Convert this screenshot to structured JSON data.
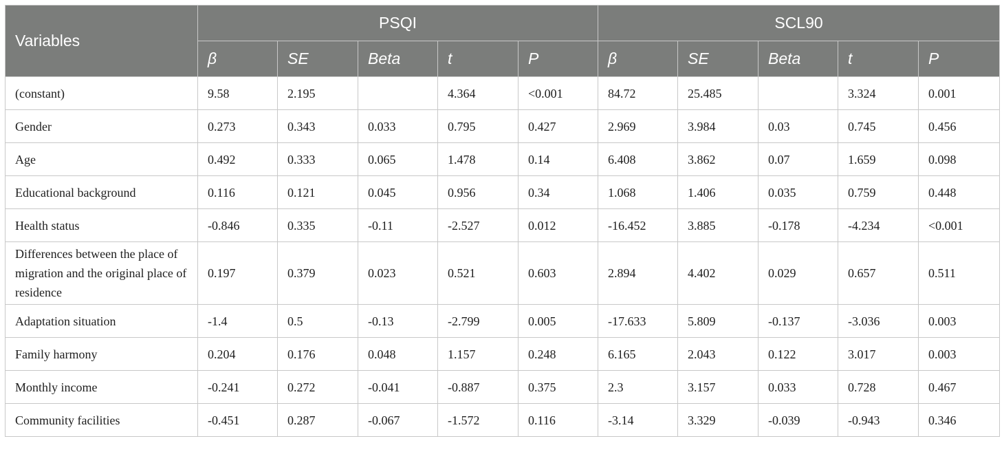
{
  "table": {
    "variables_header": "Variables",
    "groups": [
      "PSQI",
      "SCL90"
    ],
    "subheaders": [
      "β",
      "SE",
      "Beta",
      "t",
      "P",
      "β",
      "SE",
      "Beta",
      "t",
      "P"
    ],
    "rows": [
      {
        "label": "(constant)",
        "values": [
          "9.58",
          "2.195",
          "",
          "4.364",
          "<0.001",
          "84.72",
          "25.485",
          "",
          "3.324",
          "0.001"
        ]
      },
      {
        "label": "Gender",
        "values": [
          "0.273",
          "0.343",
          "0.033",
          "0.795",
          "0.427",
          "2.969",
          "3.984",
          "0.03",
          "0.745",
          "0.456"
        ]
      },
      {
        "label": "Age",
        "values": [
          "0.492",
          "0.333",
          "0.065",
          "1.478",
          "0.14",
          "6.408",
          "3.862",
          "0.07",
          "1.659",
          "0.098"
        ]
      },
      {
        "label": "Educational background",
        "values": [
          "0.116",
          "0.121",
          "0.045",
          "0.956",
          "0.34",
          "1.068",
          "1.406",
          "0.035",
          "0.759",
          "0.448"
        ]
      },
      {
        "label": "Health status",
        "values": [
          "-0.846",
          "0.335",
          "-0.11",
          "-2.527",
          "0.012",
          "-16.452",
          "3.885",
          "-0.178",
          "-4.234",
          "<0.001"
        ]
      },
      {
        "label": "Differences between the place of migration and the original place of residence",
        "values": [
          "0.197",
          "0.379",
          "0.023",
          "0.521",
          "0.603",
          "2.894",
          "4.402",
          "0.029",
          "0.657",
          "0.511"
        ]
      },
      {
        "label": "Adaptation situation",
        "values": [
          "-1.4",
          "0.5",
          "-0.13",
          "-2.799",
          "0.005",
          "-17.633",
          "5.809",
          "-0.137",
          "-3.036",
          "0.003"
        ]
      },
      {
        "label": "Family harmony",
        "values": [
          "0.204",
          "0.176",
          "0.048",
          "1.157",
          "0.248",
          "6.165",
          "2.043",
          "0.122",
          "3.017",
          "0.003"
        ]
      },
      {
        "label": "Monthly income",
        "values": [
          "-0.241",
          "0.272",
          "-0.041",
          "-0.887",
          "0.375",
          "2.3",
          "3.157",
          "0.033",
          "0.728",
          "0.467"
        ]
      },
      {
        "label": "Community facilities",
        "values": [
          "-0.451",
          "0.287",
          "-0.067",
          "-1.572",
          "0.116",
          "-3.14",
          "3.329",
          "-0.039",
          "-0.943",
          "0.346"
        ]
      }
    ]
  },
  "colors": {
    "header_background": "#7b7d7b",
    "header_text": "#ffffff",
    "border": "#c8c8c8"
  }
}
